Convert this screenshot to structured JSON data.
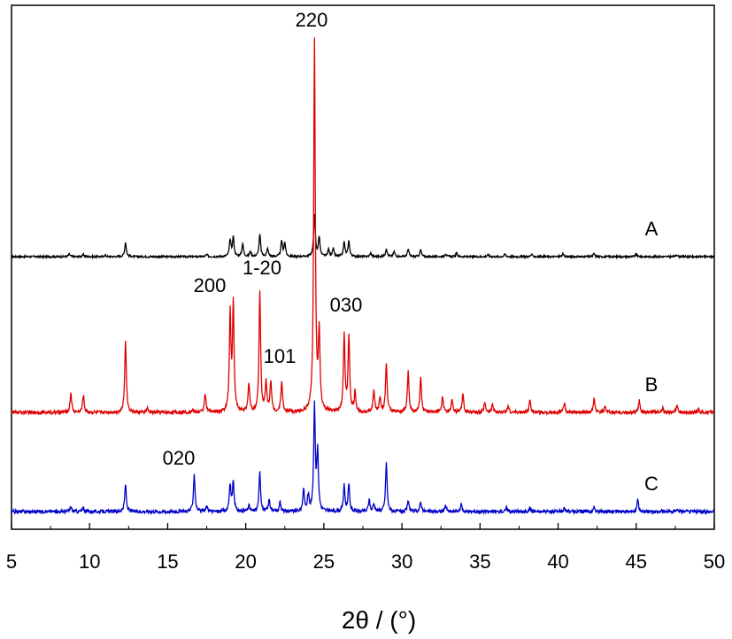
{
  "chart_data": {
    "type": "line",
    "xlabel": "2θ / (°)",
    "ylabel": "",
    "xlim": [
      5,
      50
    ],
    "x_ticks": [
      "5",
      "10",
      "15",
      "20",
      "25",
      "30",
      "35",
      "40",
      "45",
      "50"
    ],
    "grid": false,
    "legend": "none",
    "series": [
      {
        "name": "A",
        "color": "#000000",
        "baseline": 0.0,
        "peaks": [
          [
            8.7,
            0.05
          ],
          [
            9.6,
            0.04
          ],
          [
            11.0,
            0.03
          ],
          [
            12.3,
            0.28
          ],
          [
            17.5,
            0.04
          ],
          [
            19.0,
            0.32
          ],
          [
            19.2,
            0.38
          ],
          [
            19.8,
            0.25
          ],
          [
            20.3,
            0.1
          ],
          [
            20.9,
            0.43
          ],
          [
            21.4,
            0.15
          ],
          [
            22.3,
            0.3
          ],
          [
            22.5,
            0.26
          ],
          [
            24.4,
            0.83
          ],
          [
            24.7,
            0.38
          ],
          [
            25.3,
            0.14
          ],
          [
            25.6,
            0.15
          ],
          [
            26.3,
            0.28
          ],
          [
            26.6,
            0.3
          ],
          [
            28.0,
            0.07
          ],
          [
            29.0,
            0.16
          ],
          [
            29.5,
            0.1
          ],
          [
            30.4,
            0.14
          ],
          [
            31.2,
            0.13
          ],
          [
            32.8,
            0.06
          ],
          [
            33.5,
            0.07
          ],
          [
            35.5,
            0.04
          ],
          [
            36.6,
            0.05
          ],
          [
            38.3,
            0.04
          ],
          [
            40.3,
            0.05
          ],
          [
            42.3,
            0.06
          ],
          [
            45.0,
            0.05
          ],
          [
            47.6,
            0.04
          ]
        ]
      },
      {
        "name": "B",
        "color": "#e00000",
        "baseline": 0.0,
        "peaks": [
          [
            8.8,
            0.2
          ],
          [
            9.6,
            0.18
          ],
          [
            12.3,
            0.74
          ],
          [
            13.7,
            0.04
          ],
          [
            16.6,
            0.03
          ],
          [
            17.4,
            0.2
          ],
          [
            19.0,
            1.0
          ],
          [
            19.2,
            1.1
          ],
          [
            20.2,
            0.3
          ],
          [
            20.9,
            1.25
          ],
          [
            21.3,
            0.3
          ],
          [
            21.6,
            0.32
          ],
          [
            22.3,
            0.32
          ],
          [
            24.4,
            3.8
          ],
          [
            24.7,
            0.8
          ],
          [
            26.3,
            0.8
          ],
          [
            26.6,
            0.78
          ],
          [
            27.0,
            0.2
          ],
          [
            28.2,
            0.22
          ],
          [
            28.6,
            0.16
          ],
          [
            29.0,
            0.5
          ],
          [
            30.4,
            0.42
          ],
          [
            31.2,
            0.36
          ],
          [
            32.6,
            0.16
          ],
          [
            33.2,
            0.13
          ],
          [
            33.9,
            0.18
          ],
          [
            35.3,
            0.1
          ],
          [
            35.8,
            0.08
          ],
          [
            36.8,
            0.07
          ],
          [
            38.2,
            0.13
          ],
          [
            40.4,
            0.1
          ],
          [
            42.3,
            0.14
          ],
          [
            43.0,
            0.06
          ],
          [
            45.2,
            0.12
          ],
          [
            46.7,
            0.05
          ],
          [
            47.6,
            0.07
          ],
          [
            49.0,
            0.03
          ]
        ]
      },
      {
        "name": "C",
        "color": "#0000c8",
        "baseline": 0.0,
        "peaks": [
          [
            8.8,
            0.05
          ],
          [
            9.6,
            0.04
          ],
          [
            12.3,
            0.28
          ],
          [
            16.7,
            0.38
          ],
          [
            17.5,
            0.05
          ],
          [
            19.0,
            0.27
          ],
          [
            19.2,
            0.3
          ],
          [
            20.2,
            0.06
          ],
          [
            20.9,
            0.4
          ],
          [
            21.5,
            0.12
          ],
          [
            22.2,
            0.1
          ],
          [
            23.7,
            0.22
          ],
          [
            24.0,
            0.16
          ],
          [
            24.4,
            1.06
          ],
          [
            24.6,
            0.6
          ],
          [
            26.3,
            0.26
          ],
          [
            26.6,
            0.27
          ],
          [
            27.9,
            0.12
          ],
          [
            28.2,
            0.08
          ],
          [
            29.0,
            0.5
          ],
          [
            30.4,
            0.1
          ],
          [
            31.2,
            0.1
          ],
          [
            32.8,
            0.06
          ],
          [
            33.8,
            0.07
          ],
          [
            36.7,
            0.04
          ],
          [
            38.2,
            0.04
          ],
          [
            40.4,
            0.04
          ],
          [
            42.3,
            0.04
          ],
          [
            45.1,
            0.12
          ],
          [
            47.6,
            0.03
          ]
        ]
      }
    ],
    "annotations": [
      {
        "text": "220",
        "x": 24.4,
        "series": "B"
      },
      {
        "text": "200",
        "x": 19.1,
        "series": "B"
      },
      {
        "text": "1-20",
        "x": 20.9,
        "series": "B"
      },
      {
        "text": "101",
        "x": 21.6,
        "series": "B"
      },
      {
        "text": "030",
        "x": 26.5,
        "series": "B"
      },
      {
        "text": "020",
        "x": 16.7,
        "series": "C"
      }
    ]
  }
}
